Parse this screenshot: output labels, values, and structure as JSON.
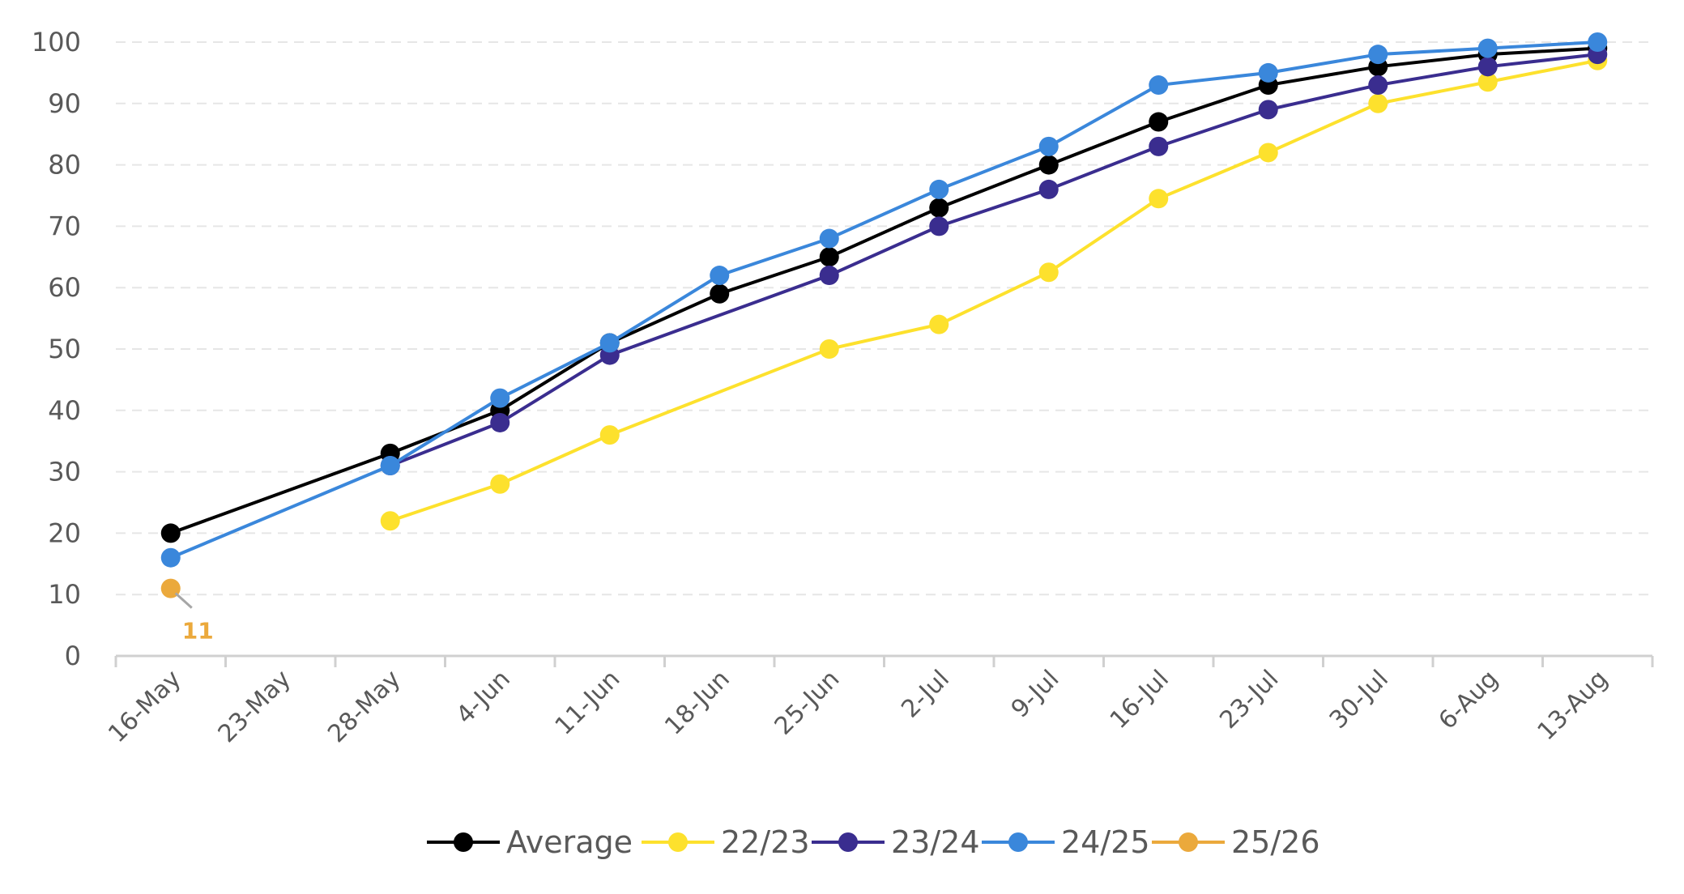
{
  "chart_data": {
    "type": "line",
    "title": "",
    "xlabel": "",
    "ylabel": "",
    "categories": [
      "16-May",
      "23-May",
      "28-May",
      "4-Jun",
      "11-Jun",
      "18-Jun",
      "25-Jun",
      "2-Jul",
      "9-Jul",
      "16-Jul",
      "23-Jul",
      "30-Jul",
      "6-Aug",
      "13-Aug"
    ],
    "ylim": [
      0,
      100
    ],
    "yticks": [
      0,
      10,
      20,
      30,
      40,
      50,
      60,
      70,
      80,
      90,
      100
    ],
    "grid": "horizontal dashed",
    "legend": "bottom",
    "series": [
      {
        "name": "Average",
        "color": "#000000",
        "values": [
          20,
          null,
          33,
          40,
          51,
          59,
          65,
          73,
          80,
          87,
          93,
          96,
          98,
          99
        ]
      },
      {
        "name": "22/23",
        "color": "#FDE12D",
        "values": [
          null,
          null,
          22,
          28,
          36,
          null,
          50,
          54,
          62.5,
          74.5,
          82,
          90,
          93.5,
          97
        ]
      },
      {
        "name": "23/24",
        "color": "#3A2D8F",
        "values": [
          null,
          null,
          31,
          38,
          49,
          null,
          62,
          70,
          76,
          83,
          89,
          93,
          96,
          98
        ]
      },
      {
        "name": "24/25",
        "color": "#3A87DB",
        "values": [
          16,
          null,
          31,
          42,
          51,
          62,
          68,
          76,
          83,
          93,
          95,
          98,
          99,
          100
        ]
      },
      {
        "name": "25/26",
        "color": "#EBA93C",
        "values": [
          11,
          null,
          null,
          null,
          null,
          null,
          null,
          null,
          null,
          null,
          null,
          null,
          null,
          null
        ]
      }
    ],
    "annotations": [
      {
        "series": "25/26",
        "category": "16-May",
        "text": "11"
      }
    ]
  }
}
